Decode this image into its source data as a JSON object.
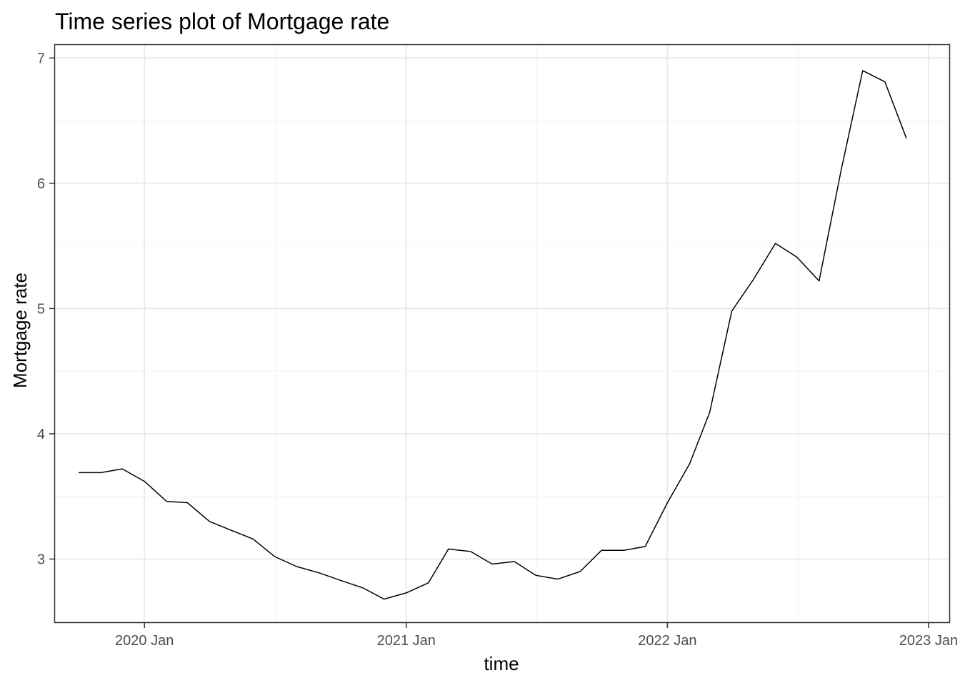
{
  "chart_data": {
    "type": "line",
    "title": "Time series plot of Mortgage rate",
    "xlabel": "time",
    "ylabel": "Mortgage rate",
    "x_axis_type": "date",
    "y_ticks": [
      3,
      4,
      5,
      6,
      7
    ],
    "y_tick_labels": [
      "3",
      "4",
      "5",
      "6",
      "7"
    ],
    "x_ticks": [
      "2020-01-01",
      "2021-01-01",
      "2022-01-01",
      "2023-01-01"
    ],
    "x_tick_labels": [
      "2020 Jan",
      "2021 Jan",
      "2022 Jan",
      "2023 Jan"
    ],
    "xlim": [
      "2019-08-28",
      "2023-01-31"
    ],
    "ylim": [
      2.49,
      7.11
    ],
    "grid": true,
    "legend": "none",
    "series": [
      {
        "x": [
          "2019-10-01",
          "2019-11-01",
          "2019-12-01",
          "2020-01-01",
          "2020-02-01",
          "2020-03-01",
          "2020-04-01",
          "2020-05-01",
          "2020-06-01",
          "2020-07-01",
          "2020-08-01",
          "2020-09-01",
          "2020-10-01",
          "2020-11-01",
          "2020-12-01",
          "2021-01-01",
          "2021-02-01",
          "2021-03-01",
          "2021-04-01",
          "2021-05-01",
          "2021-06-01",
          "2021-07-01",
          "2021-08-01",
          "2021-09-01",
          "2021-10-01",
          "2021-11-01",
          "2021-12-01",
          "2022-01-01",
          "2022-02-01",
          "2022-03-01",
          "2022-04-01",
          "2022-05-01",
          "2022-06-01",
          "2022-07-01",
          "2022-08-01",
          "2022-09-01",
          "2022-10-01",
          "2022-11-01",
          "2022-12-01"
        ],
        "y": [
          3.69,
          3.69,
          3.72,
          3.62,
          3.46,
          3.45,
          3.3,
          3.23,
          3.16,
          3.02,
          2.94,
          2.89,
          2.83,
          2.77,
          2.68,
          2.73,
          2.81,
          3.08,
          3.06,
          2.96,
          2.98,
          2.87,
          2.84,
          2.9,
          3.07,
          3.07,
          3.1,
          3.45,
          3.76,
          4.17,
          4.98,
          5.23,
          5.52,
          5.41,
          5.22,
          6.11,
          6.9,
          6.81,
          6.36
        ]
      }
    ]
  }
}
